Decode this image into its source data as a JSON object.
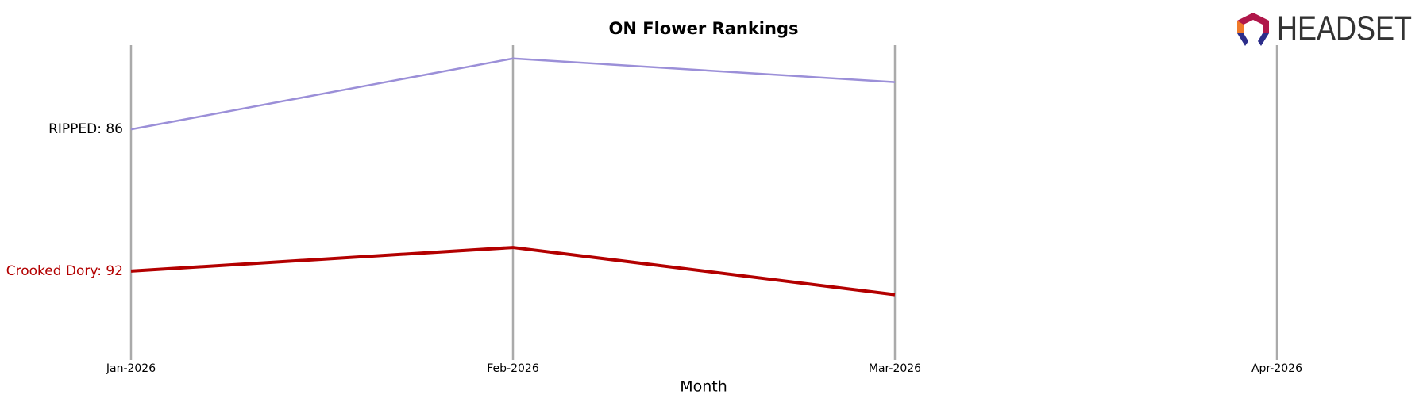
{
  "chart_data": {
    "type": "line",
    "title": "ON Flower Rankings",
    "x_label": "Month",
    "logo": "HEADSET",
    "categories": [
      "Jan-2026",
      "Feb-2026",
      "Mar-2026",
      "Apr-2026"
    ],
    "series": [
      {
        "name": "RIPPED",
        "color": "#9b8fd8",
        "values": [
          86,
          83,
          84,
          null
        ],
        "value_labels": [
          "RIPPED: 86",
          null,
          null,
          null
        ]
      },
      {
        "name": "Crooked Dory",
        "color": "#b30000",
        "values": [
          92,
          91,
          93,
          null
        ],
        "value_labels": [
          "Crooked Dory: 92",
          null,
          null,
          null
        ]
      }
    ],
    "ylim": [
      96,
      82
    ]
  }
}
